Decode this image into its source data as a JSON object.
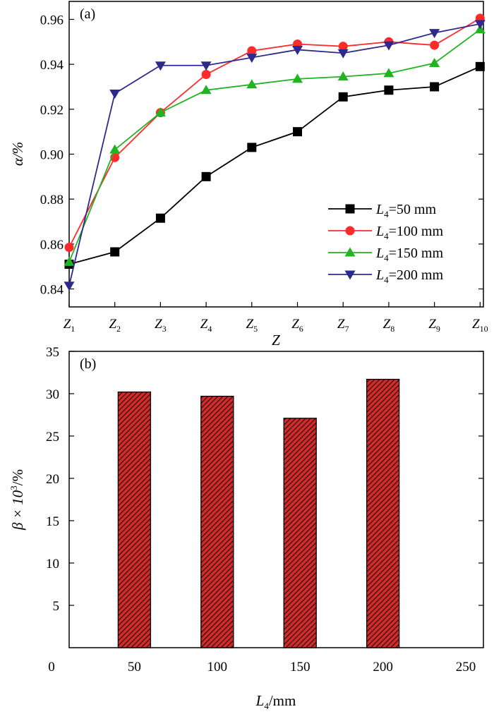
{
  "chart_data": [
    {
      "panel_label": "(a)",
      "type": "line",
      "xlabel": "Z",
      "ylabel": "α/%",
      "categories": [
        {
          "base": "Z",
          "sub": "1"
        },
        {
          "base": "Z",
          "sub": "2"
        },
        {
          "base": "Z",
          "sub": "3"
        },
        {
          "base": "Z",
          "sub": "4"
        },
        {
          "base": "Z",
          "sub": "5"
        },
        {
          "base": "Z",
          "sub": "6"
        },
        {
          "base": "Z",
          "sub": "7"
        },
        {
          "base": "Z",
          "sub": "8"
        },
        {
          "base": "Z",
          "sub": "9"
        },
        {
          "base": "Z",
          "sub": "10"
        }
      ],
      "ylim": [
        0.832,
        0.968
      ],
      "yticks": [
        0.84,
        0.86,
        0.88,
        0.9,
        0.92,
        0.94,
        0.96
      ],
      "ytick_labels": [
        "0.84",
        "0.86",
        "0.88",
        "0.90",
        "0.92",
        "0.94",
        "0.96"
      ],
      "legend_position": "bottom-right",
      "series": [
        {
          "name": {
            "base": "L",
            "sub": "4",
            "rest": "=50 mm"
          },
          "color": "#000000",
          "marker": "square",
          "values": [
            0.851,
            0.8565,
            0.8715,
            0.89,
            0.903,
            0.91,
            0.9255,
            0.9285,
            0.93,
            0.939
          ]
        },
        {
          "name": {
            "base": "L",
            "sub": "4",
            "rest": "=100 mm"
          },
          "color": "#ff2a2a",
          "marker": "circle",
          "values": [
            0.8585,
            0.8985,
            0.9185,
            0.9355,
            0.946,
            0.949,
            0.948,
            0.95,
            0.9485,
            0.9605
          ]
        },
        {
          "name": {
            "base": "L",
            "sub": "4",
            "rest": "=150 mm"
          },
          "color": "#21b321",
          "marker": "triangle-up",
          "values": [
            0.852,
            0.902,
            0.9185,
            0.9285,
            0.931,
            0.9335,
            0.9345,
            0.936,
            0.9405,
            0.9555
          ]
        },
        {
          "name": {
            "base": "L",
            "sub": "4",
            "rest": "=200 mm"
          },
          "color": "#2e2a8c",
          "marker": "triangle-down",
          "values": [
            0.8415,
            0.927,
            0.9395,
            0.9395,
            0.943,
            0.9465,
            0.945,
            0.9485,
            0.954,
            0.958
          ]
        }
      ]
    },
    {
      "panel_label": "(b)",
      "type": "bar",
      "xlabel": {
        "base": "L",
        "sub": "4",
        "rest": "/mm"
      },
      "ylabel": {
        "base": "β × 10",
        "sup": "3",
        "rest": "/%"
      },
      "x": [
        50,
        100,
        150,
        200
      ],
      "values": [
        30.2,
        29.7,
        27.1,
        31.7
      ],
      "xlim": [
        0,
        250
      ],
      "ylim": [
        0,
        35
      ],
      "xticks": [
        0,
        50,
        100,
        150,
        200,
        250
      ],
      "yticks": [
        5,
        10,
        15,
        20,
        25,
        30,
        35
      ],
      "bar_color": "#d42a2a",
      "bar_pattern": "diagonal-hatch"
    }
  ]
}
